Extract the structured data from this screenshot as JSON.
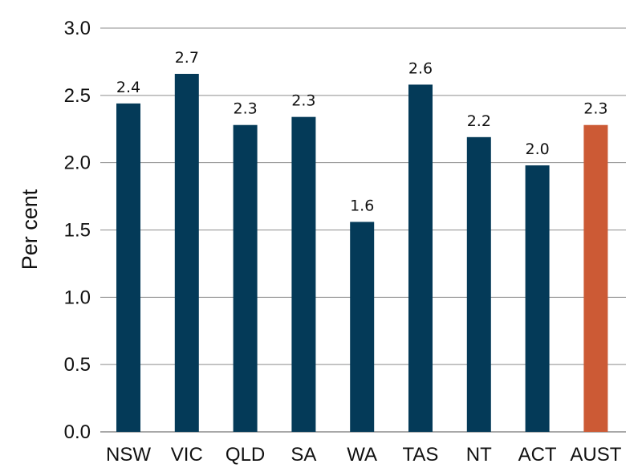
{
  "chart_data": {
    "type": "bar",
    "title": "",
    "xlabel": "",
    "ylabel": "Per cent",
    "ylim": [
      0,
      3
    ],
    "yticks": [
      "0.0",
      "0.5",
      "1.0",
      "1.5",
      "2.0",
      "2.5",
      "3.0"
    ],
    "grid": "horizontal",
    "categories": [
      "NSW",
      "VIC",
      "QLD",
      "SA",
      "WA",
      "TAS",
      "NT",
      "ACT",
      "AUST"
    ],
    "values": [
      2.44,
      2.66,
      2.28,
      2.34,
      1.56,
      2.58,
      2.19,
      1.98,
      2.28
    ],
    "data_labels": [
      "2.4",
      "2.7",
      "2.3",
      "2.3",
      "1.6",
      "2.6",
      "2.2",
      "2.0",
      "2.3"
    ],
    "colors": {
      "default": "#043a58",
      "highlight": "#cc5a35",
      "highlight_category": "AUST",
      "grid": "#8c8c8c"
    }
  }
}
